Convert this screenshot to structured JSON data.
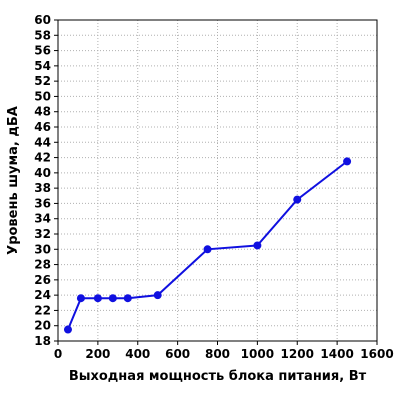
{
  "chart_data": {
    "type": "line",
    "title": "",
    "xlabel": "Выходная мощность блока питания, Вт",
    "ylabel": "Уровень шума, дБА",
    "xlim": [
      0,
      1600
    ],
    "ylim": [
      18,
      60
    ],
    "x_ticks": [
      0,
      200,
      400,
      600,
      800,
      1000,
      1200,
      1400,
      1600
    ],
    "y_ticks": [
      18,
      20,
      22,
      24,
      26,
      28,
      30,
      32,
      34,
      36,
      38,
      40,
      42,
      44,
      46,
      48,
      50,
      52,
      54,
      56,
      58,
      60
    ],
    "grid": true,
    "legend": "none",
    "series": [
      {
        "color": "#1010e0",
        "x": [
          50,
          115,
          200,
          275,
          350,
          500,
          750,
          1000,
          1200,
          1450
        ],
        "y": [
          19.5,
          23.6,
          23.6,
          23.6,
          23.6,
          24.0,
          30.0,
          30.5,
          36.5,
          41.5
        ]
      }
    ]
  }
}
